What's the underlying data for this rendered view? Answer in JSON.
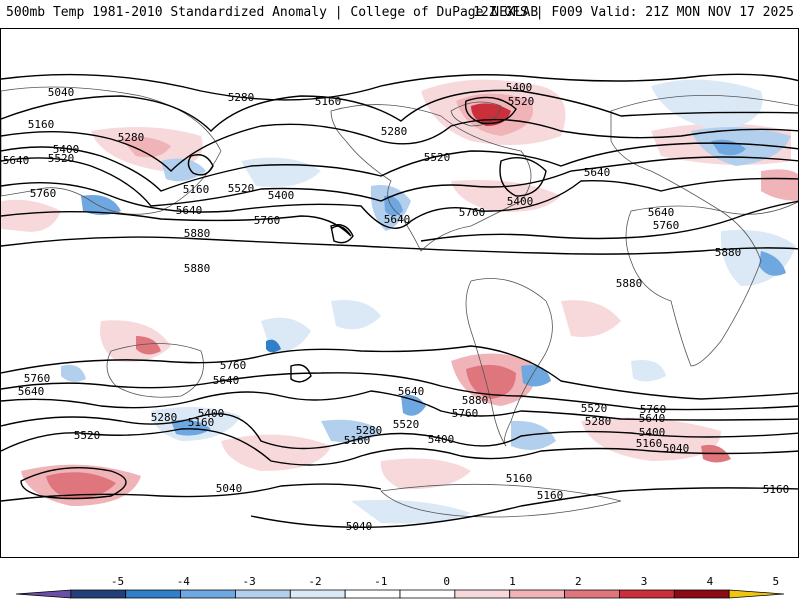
{
  "header": {
    "title": "500mb Temp 1981-2010 Standardized Anomaly | College of DuPage NEXLAB",
    "run_info": "12Z GFS | F009 Valid: 21Z MON NOV 17 2025"
  },
  "colors": {
    "line": "#000000",
    "land": "#555555",
    "pos1": "#f7d9dc",
    "pos2": "#efb3b8",
    "pos3": "#e0767d",
    "pos4": "#c9303b",
    "pos5": "#8b0a16",
    "pos6": "#f1c40f",
    "neg1": "#dbe8f6",
    "neg2": "#b3cfee",
    "neg3": "#6fa8e0",
    "neg4": "#2f7fc9",
    "neg5": "#23407a",
    "neg6": "#6a4fa8"
  },
  "colorbar": {
    "ticks": [
      "-5",
      "-4",
      "-3",
      "-2",
      "-1",
      "0",
      "1",
      "2",
      "3",
      "4",
      "5"
    ],
    "segment_colors": [
      "#6a4fa8",
      "#23407a",
      "#2f7fc9",
      "#6fa8e0",
      "#b3cfee",
      "#dbe8f6",
      "#ffffff",
      "#ffffff",
      "#f7d9dc",
      "#efb3b8",
      "#e0767d",
      "#c9303b",
      "#8b0a16",
      "#f1c40f"
    ]
  },
  "contour_labels": {
    "l5040a": "5040",
    "l5160a": "5160",
    "l5280a": "5280",
    "l5400a": "5400",
    "l5520a": "5520",
    "l5640a": "5640",
    "l5760a": "5760",
    "l5160b": "5160",
    "l5280b": "5280",
    "l5400b": "5400",
    "l5520b": "5520",
    "l5640b": "5640",
    "l5760b": "5760",
    "l5880a": "5880",
    "l5880b": "5880",
    "l5280c": "5280",
    "l5160c": "5160",
    "l5400c": "5400",
    "l5520c": "5520",
    "l5520d": "5520",
    "l5640c": "5640",
    "l5640d": "5640",
    "l5760c": "5760",
    "l5400d": "5400",
    "l5640e": "5640",
    "l5760d": "5760",
    "l5880c": "5880",
    "l5880d": "5880",
    "s5760a": "5760",
    "s5640a": "5640",
    "s5760b": "5760",
    "s5640b": "5640",
    "s5280a": "5280",
    "s5400a": "5400",
    "s5160a": "5160",
    "s5520a": "5520",
    "s5640c": "5640",
    "s5520b": "5520",
    "s5280b": "5280",
    "s5160b": "5160",
    "s5400b": "5400",
    "s5880a": "5880",
    "s5760c": "5760",
    "s5520c": "5520",
    "s5640d": "5640",
    "s5760d": "5760",
    "s5280c": "5280",
    "s5400c": "5400",
    "s5160c": "5160",
    "s5040a": "5040",
    "s5160d": "5160",
    "s5160e": "5160",
    "s5040b": "5040",
    "s5040c": "5040",
    "s5160f": "5160"
  }
}
